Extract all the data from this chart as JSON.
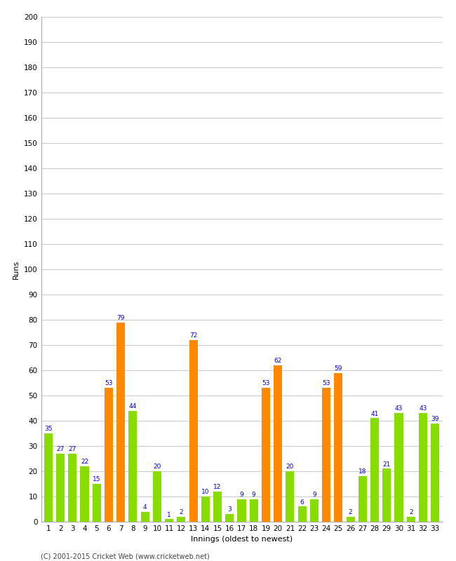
{
  "innings": [
    1,
    2,
    3,
    4,
    5,
    6,
    7,
    8,
    9,
    10,
    11,
    12,
    13,
    14,
    15,
    16,
    17,
    18,
    19,
    20,
    21,
    22,
    23,
    24,
    25,
    26,
    27,
    28,
    29,
    30,
    31,
    32,
    33
  ],
  "values": [
    35,
    27,
    27,
    22,
    15,
    53,
    79,
    44,
    4,
    20,
    1,
    2,
    72,
    10,
    12,
    3,
    9,
    9,
    53,
    62,
    20,
    6,
    9,
    53,
    59,
    2,
    18,
    41,
    21,
    43,
    2,
    43,
    39
  ],
  "colors": [
    "#88dd00",
    "#88dd00",
    "#88dd00",
    "#88dd00",
    "#88dd00",
    "#ff8800",
    "#ff8800",
    "#88dd00",
    "#88dd00",
    "#88dd00",
    "#88dd00",
    "#88dd00",
    "#ff8800",
    "#88dd00",
    "#88dd00",
    "#88dd00",
    "#88dd00",
    "#88dd00",
    "#ff8800",
    "#ff8800",
    "#88dd00",
    "#88dd00",
    "#88dd00",
    "#ff8800",
    "#ff8800",
    "#88dd00",
    "#88dd00",
    "#88dd00",
    "#88dd00",
    "#88dd00",
    "#88dd00",
    "#88dd00",
    "#88dd00"
  ],
  "xlabel": "Innings (oldest to newest)",
  "ylabel": "Runs",
  "ylim": [
    0,
    200
  ],
  "yticks": [
    0,
    10,
    20,
    30,
    40,
    50,
    60,
    70,
    80,
    90,
    100,
    110,
    120,
    130,
    140,
    150,
    160,
    170,
    180,
    190,
    200
  ],
  "bg_color": "#ffffff",
  "grid_color": "#cccccc",
  "bar_label_color": "#0000cc",
  "bar_label_fontsize": 6.5,
  "axis_label_fontsize": 8,
  "tick_fontsize": 7.5,
  "footer": "(C) 2001-2015 Cricket Web (www.cricketweb.net)"
}
